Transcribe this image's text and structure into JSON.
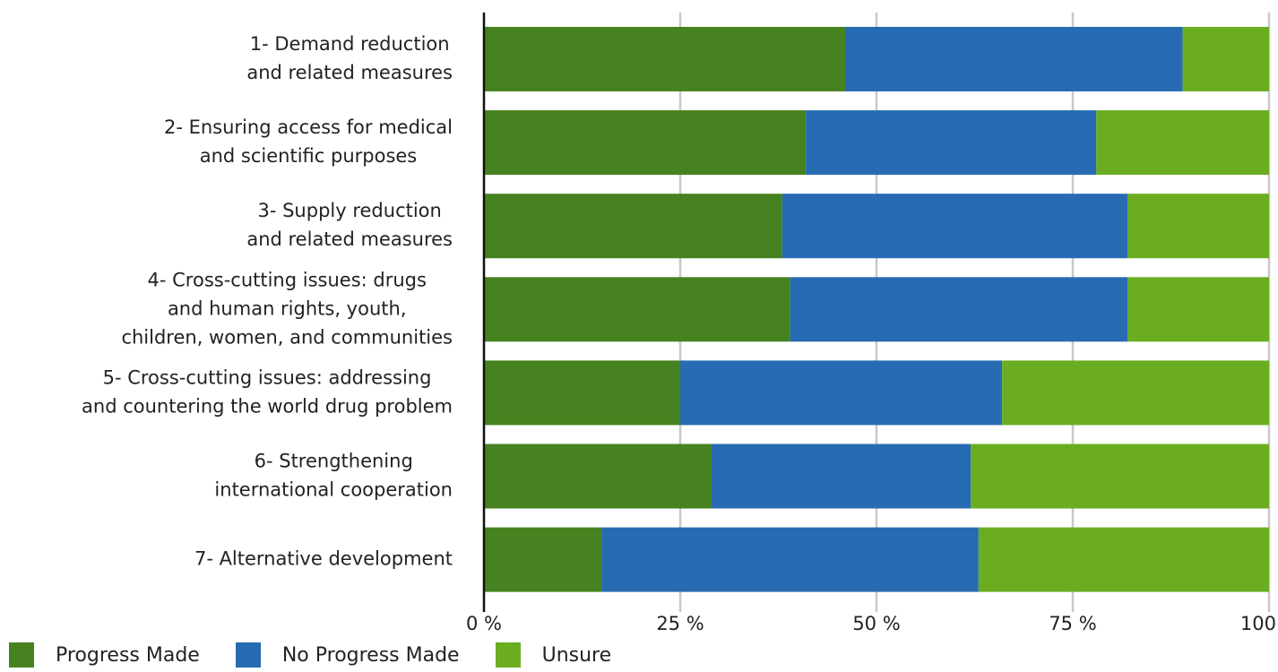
{
  "chart_data": {
    "type": "bar",
    "orientation": "horizontal",
    "stacked": true,
    "categories": [
      [
        "1- Demand reduction",
        "and related measures"
      ],
      [
        "2- Ensuring access for medical",
        "and scientific purposes"
      ],
      [
        "3- Supply reduction",
        "and related measures"
      ],
      [
        "4- Cross-cutting issues: drugs",
        "and human rights, youth,",
        "children, women, and communities"
      ],
      [
        "5- Cross-cutting issues: addressing",
        "and countering the world drug problem"
      ],
      [
        "6- Strengthening",
        "international cooperation"
      ],
      [
        "7- Alternative development"
      ]
    ],
    "series": [
      {
        "name": "Progress Made",
        "color": "#46821f",
        "values": [
          46,
          41,
          38,
          39,
          25,
          29,
          15
        ]
      },
      {
        "name": "No Progress Made",
        "color": "#276bb3",
        "values": [
          43,
          37,
          44,
          43,
          41,
          33,
          48
        ]
      },
      {
        "name": "Unsure",
        "color": "#6aad21",
        "values": [
          11,
          22,
          18,
          18,
          34,
          38,
          37
        ]
      }
    ],
    "x_ticks": [
      "0 %",
      "25 %",
      "50 %",
      "75 %",
      "100"
    ],
    "xlim": [
      0,
      100
    ],
    "grid": true,
    "legend_position": "bottom-left",
    "title": "",
    "xlabel": "",
    "ylabel": ""
  }
}
